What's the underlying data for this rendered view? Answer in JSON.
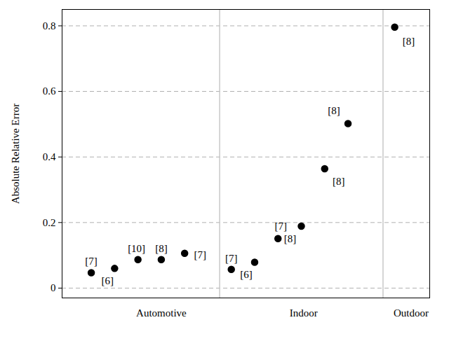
{
  "chart_data": {
    "type": "scatter",
    "ylabel": "Absolute Relative Error",
    "x": [
      1,
      2,
      3,
      4,
      5,
      7,
      8,
      9,
      10,
      11,
      12,
      14
    ],
    "values": [
      0.047,
      0.06,
      0.087,
      0.087,
      0.106,
      0.057,
      0.079,
      0.151,
      0.189,
      0.364,
      0.502,
      0.796
    ],
    "point_labels": [
      "[7]",
      "[6]",
      "[10]",
      "[8]",
      "[7]",
      "[7]",
      "[6]",
      "[7]",
      "[8]",
      "[8]",
      "[8]",
      "[8]"
    ],
    "dividers": [
      6.5,
      13.5
    ],
    "xlim": [
      -0.25,
      15.5
    ],
    "xticks": [
      {
        "value": 4,
        "label": "Automotive"
      },
      {
        "value": 10.1,
        "label": "Indoor"
      },
      {
        "value": 14.7,
        "label": "Outdoor"
      }
    ],
    "ylim": [
      -0.03,
      0.85
    ],
    "yticks": [
      0,
      0.2,
      0.4,
      0.6,
      0.8
    ],
    "grid": true,
    "color": "#000000",
    "marker": "circle"
  }
}
